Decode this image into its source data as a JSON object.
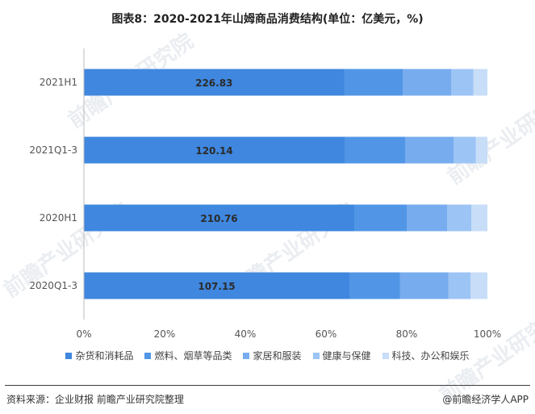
{
  "title": "图表8：2020-2021年山姆商品消费结构(单位：亿美元，%)",
  "chart_data": {
    "type": "bar",
    "orientation": "horizontal",
    "stacked": "percent",
    "categories": [
      "2021H1",
      "2021Q1-3",
      "2020H1",
      "2020Q1-3"
    ],
    "totals": [
      "226.83",
      "120.14",
      "210.76",
      "107.15"
    ],
    "series": [
      {
        "name": "杂货和消耗品",
        "values": [
          64.5,
          64.6,
          67.0,
          65.8
        ],
        "color": "#3f87df"
      },
      {
        "name": "燃料、烟草等品类",
        "values": [
          14.5,
          15.0,
          13.0,
          12.5
        ],
        "color": "#5196e6"
      },
      {
        "name": "家居和服装",
        "values": [
          12.0,
          12.0,
          10.0,
          12.0
        ],
        "color": "#77acee"
      },
      {
        "name": "健康与保健",
        "values": [
          5.5,
          5.5,
          6.0,
          5.5
        ],
        "color": "#9cc4f4"
      },
      {
        "name": "科技、办公和娱乐",
        "values": [
          3.5,
          2.9,
          4.0,
          4.2
        ],
        "color": "#c7ddf8"
      }
    ],
    "x_ticks": [
      "0%",
      "20%",
      "40%",
      "60%",
      "80%",
      "100%"
    ],
    "xlim": [
      0,
      100
    ],
    "grid": false,
    "legend_position": "bottom"
  },
  "footer": {
    "source": "资料来源：企业财报 前瞻产业研究院整理",
    "brand": "@前瞻经济学人APP"
  },
  "watermark": "前瞻产业研究院"
}
